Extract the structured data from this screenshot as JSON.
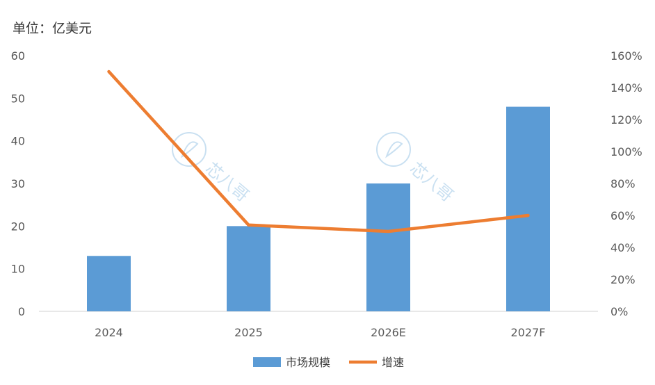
{
  "unit_label": "单位：亿美元",
  "watermark_text": "芯八哥",
  "colors": {
    "bar": "#5b9bd5",
    "line": "#ed7d31",
    "axis": "#d9d9d9",
    "watermark": "#9ec7e6"
  },
  "chart_data": {
    "type": "bar",
    "categories": [
      "2024",
      "2025",
      "2026E",
      "2027F"
    ],
    "series": [
      {
        "name": "市场规模",
        "type": "bar",
        "axis": "left",
        "values": [
          13,
          20,
          30,
          48
        ]
      },
      {
        "name": "增速",
        "type": "line",
        "axis": "right",
        "values": [
          150,
          54,
          50,
          60
        ]
      }
    ],
    "ylim_left": [
      0,
      60
    ],
    "yticks_left": [
      "0",
      "10",
      "20",
      "30",
      "40",
      "50",
      "60"
    ],
    "ylim_right": [
      0,
      160
    ],
    "yticks_right": [
      "0%",
      "20%",
      "40%",
      "60%",
      "80%",
      "100%",
      "120%",
      "140%",
      "160%"
    ],
    "legend_position": "bottom",
    "grid": false
  }
}
